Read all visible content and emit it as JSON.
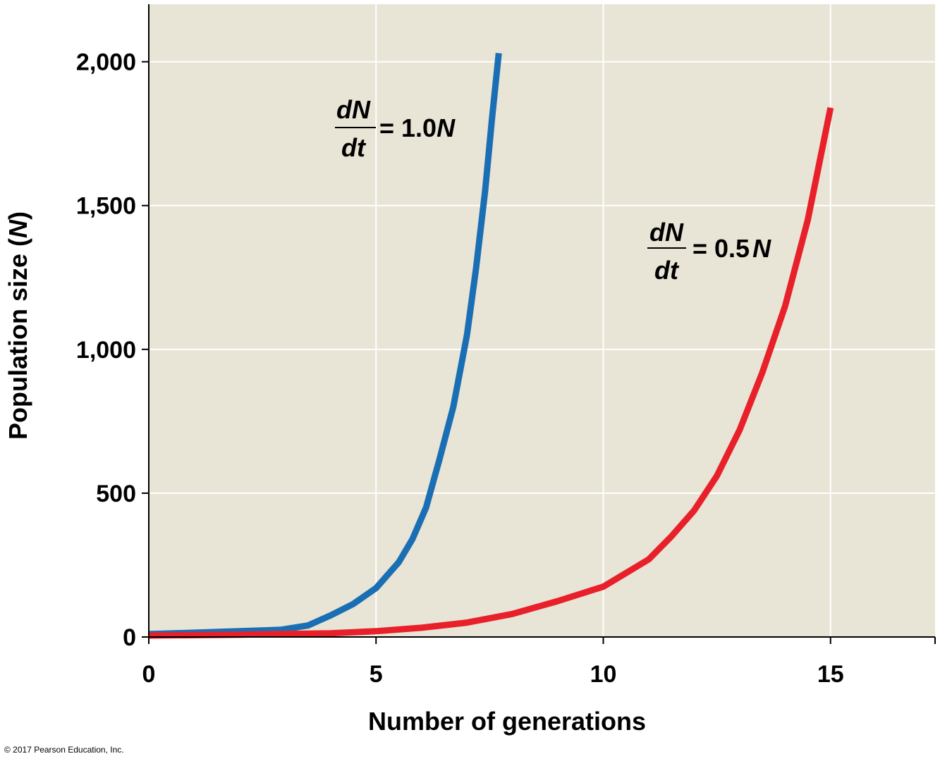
{
  "chart_data": {
    "type": "line",
    "xlabel": "Number of generations",
    "ylabel_prefix": "Population size (",
    "ylabel_var": "N",
    "ylabel_suffix": ")",
    "xlim": [
      0,
      17.3
    ],
    "ylim": [
      0,
      2200
    ],
    "x_ticks": [
      0,
      5,
      10,
      15
    ],
    "x_tick_labels": [
      "0",
      "5",
      "10",
      "15"
    ],
    "y_ticks": [
      0,
      500,
      1000,
      1500,
      2000
    ],
    "y_tick_labels": [
      "0",
      "500",
      "1,000",
      "1,500",
      "2,000"
    ],
    "grid": true,
    "background": "#e8e4d6",
    "series": [
      {
        "color": "#1a6fb4",
        "x": [
          0,
          1,
          2,
          2.9,
          3.5,
          4,
          4.5,
          5,
          5.5,
          5.8,
          6.1,
          6.4,
          6.7,
          7.0,
          7.2,
          7.4,
          7.55,
          7.7
        ],
        "y": [
          10,
          15,
          20,
          25,
          40,
          75,
          115,
          170,
          260,
          340,
          450,
          620,
          800,
          1050,
          1280,
          1550,
          1800,
          2030
        ]
      },
      {
        "color": "#e8202a",
        "x": [
          0,
          2,
          4,
          5,
          6,
          7,
          8,
          9,
          10,
          11,
          11.5,
          12,
          12.5,
          13,
          13.5,
          14,
          14.5,
          15
        ],
        "y": [
          5,
          8,
          13,
          20,
          32,
          50,
          80,
          125,
          175,
          270,
          350,
          440,
          560,
          720,
          920,
          1150,
          1450,
          1840
        ]
      }
    ],
    "annotations": {
      "blue": {
        "numerator": "dN",
        "denominator": "dt",
        "equals": "= 1.0",
        "var": "N"
      },
      "red": {
        "numerator": "dN",
        "denominator": "dt",
        "equals": "= 0.5",
        "var": "N"
      }
    }
  },
  "copyright": "© 2017 Pearson Education, Inc."
}
